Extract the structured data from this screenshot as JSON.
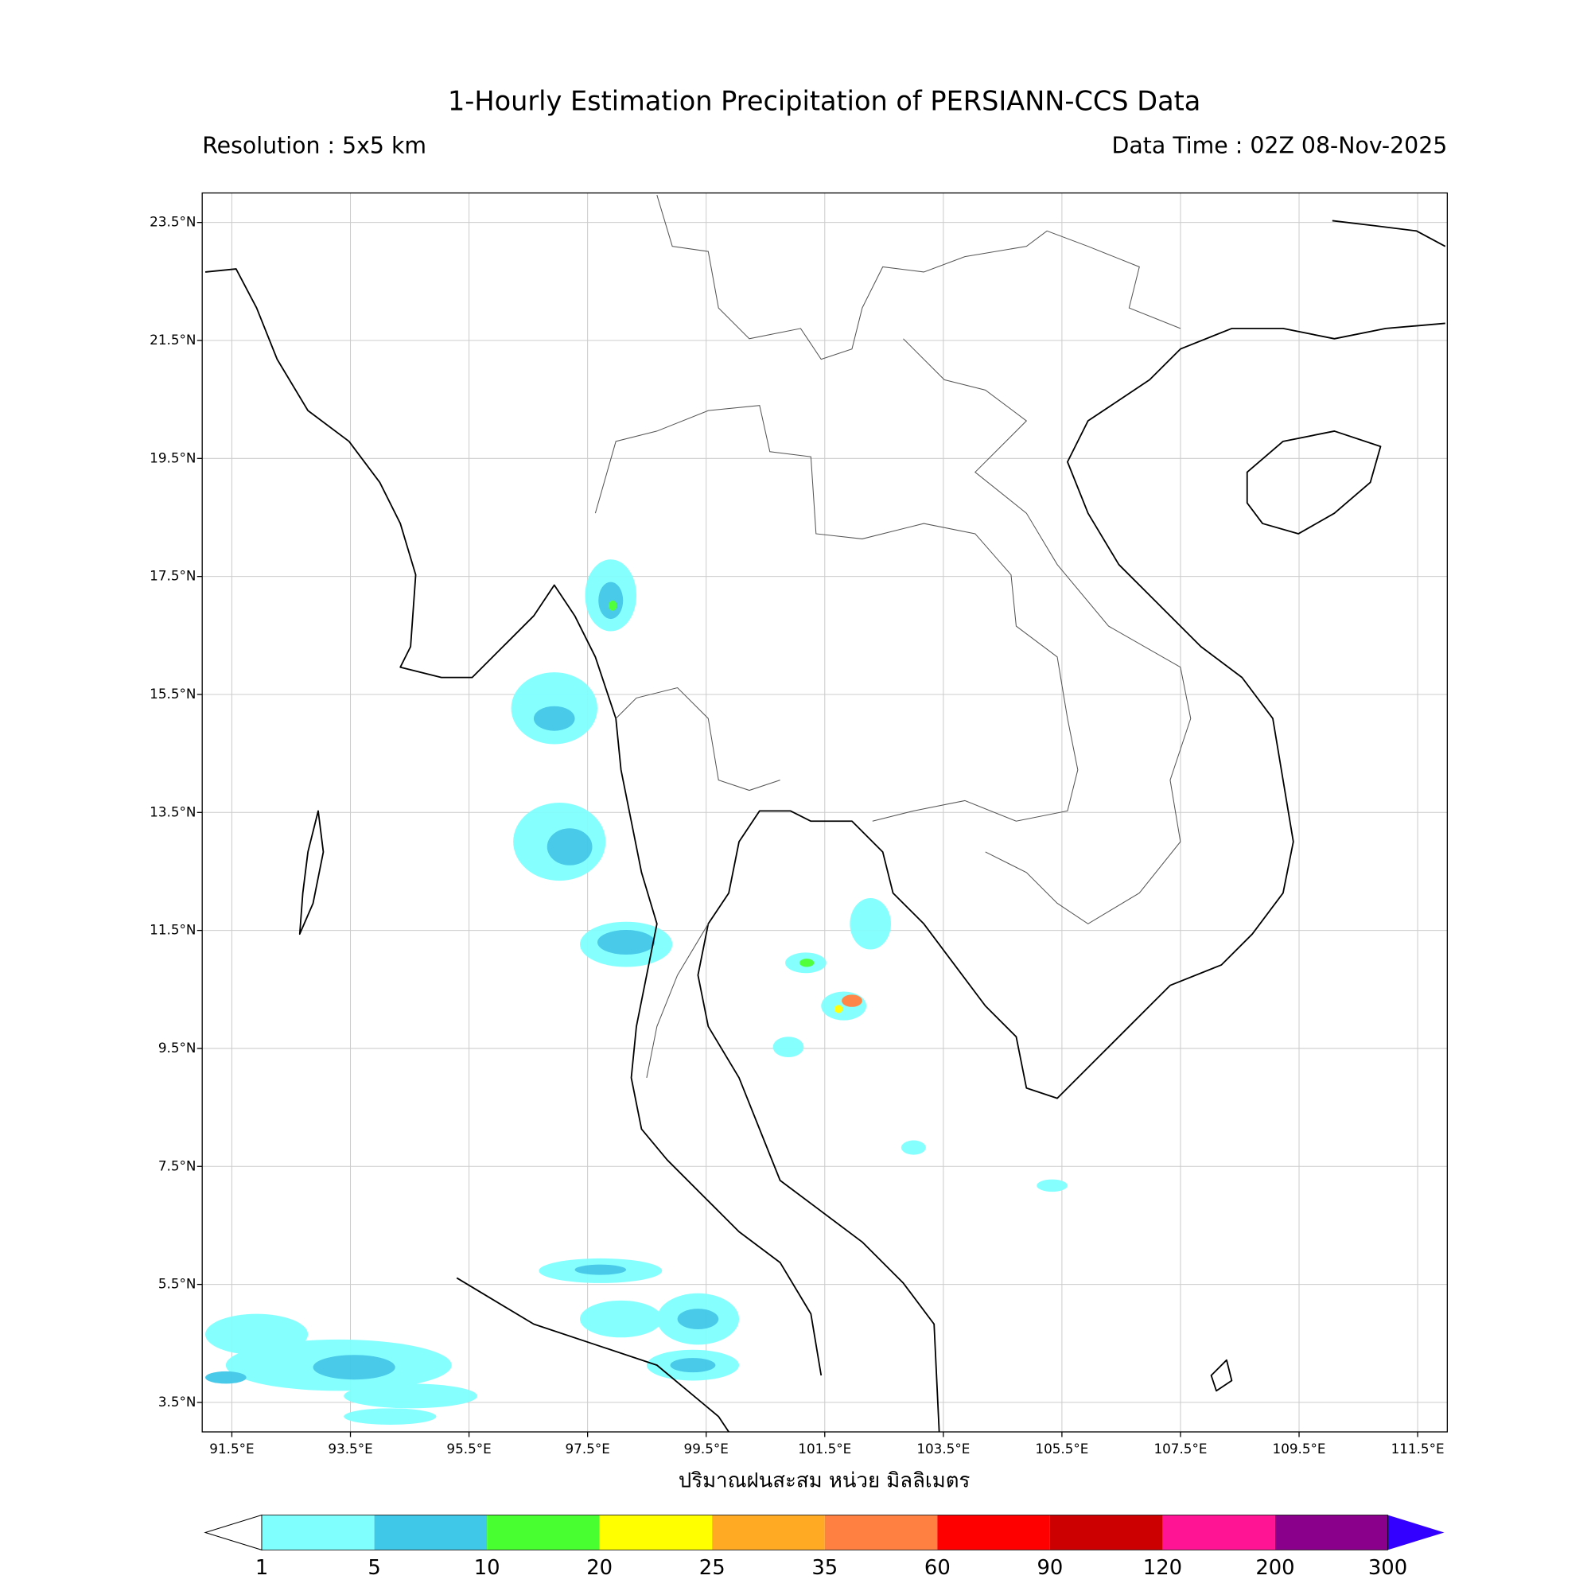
{
  "chart_data": {
    "type": "map",
    "title": "1-Hourly Estimation Precipitation of PERSIANN-CCS Data",
    "subtitle_left": "Resolution : 5x5 km",
    "subtitle_right": "Data Time : 02Z 08-Nov-2025",
    "xlabel": "ปริมาณฝนสะสม หน่วย มิลลิเมตร",
    "xlim": [
      91,
      112
    ],
    "ylim": [
      3,
      24
    ],
    "xticks": [
      {
        "value": 91.5,
        "label": "91.5°E"
      },
      {
        "value": 93.5,
        "label": "93.5°E"
      },
      {
        "value": 95.5,
        "label": "95.5°E"
      },
      {
        "value": 97.5,
        "label": "97.5°E"
      },
      {
        "value": 99.5,
        "label": "99.5°E"
      },
      {
        "value": 101.5,
        "label": "101.5°E"
      },
      {
        "value": 103.5,
        "label": "103.5°E"
      },
      {
        "value": 105.5,
        "label": "105.5°E"
      },
      {
        "value": 107.5,
        "label": "107.5°E"
      },
      {
        "value": 109.5,
        "label": "109.5°E"
      },
      {
        "value": 111.5,
        "label": "111.5°E"
      }
    ],
    "yticks": [
      {
        "value": 3.5,
        "label": "3.5°N"
      },
      {
        "value": 5.5,
        "label": "5.5°N"
      },
      {
        "value": 7.5,
        "label": "7.5°N"
      },
      {
        "value": 9.5,
        "label": "9.5°N"
      },
      {
        "value": 11.5,
        "label": "11.5°N"
      },
      {
        "value": 13.5,
        "label": "13.5°N"
      },
      {
        "value": 15.5,
        "label": "15.5°N"
      },
      {
        "value": 17.5,
        "label": "17.5°N"
      },
      {
        "value": 19.5,
        "label": "19.5°N"
      },
      {
        "value": 21.5,
        "label": "21.5°N"
      },
      {
        "value": 23.5,
        "label": "23.5°N"
      }
    ],
    "grid": true,
    "colorbar": {
      "levels": [
        1,
        5,
        10,
        20,
        25,
        35,
        60,
        90,
        120,
        200,
        300
      ],
      "colors": [
        "#80ffff",
        "#40c8e8",
        "#48ff30",
        "#ffff00",
        "#ffaa22",
        "#ff8040",
        "#ff0000",
        "#cc0000",
        "#ff1493",
        "#8b008b"
      ],
      "under_color": "#ffffff",
      "over_color": "#3300ff"
    }
  }
}
